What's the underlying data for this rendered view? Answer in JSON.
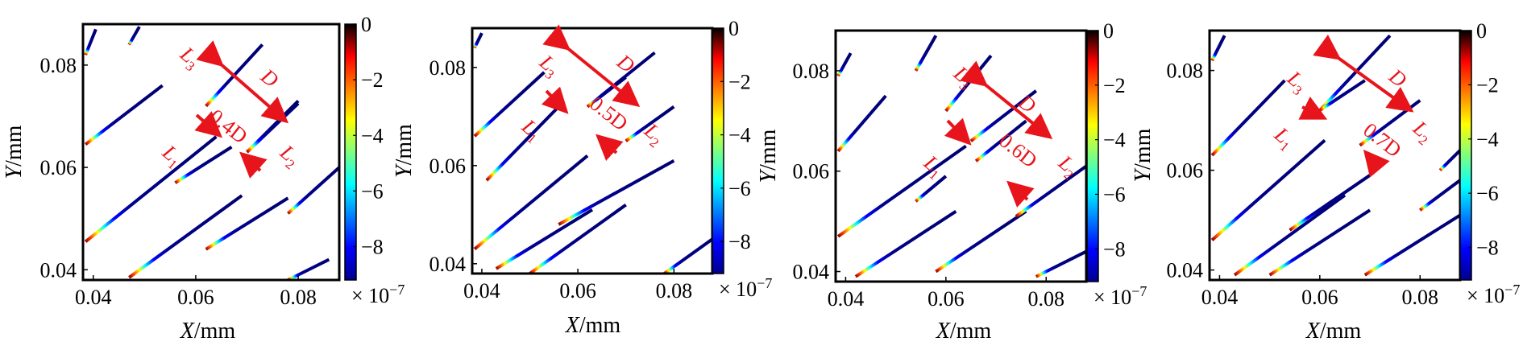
{
  "chart_data": [
    {
      "type": "scatter",
      "description_free": true,
      "xlabel_var": "X",
      "xlabel_unit": "/mm",
      "ylabel_var": "Y",
      "ylabel_unit": "/mm",
      "xticks": [
        "0.04",
        "0.06",
        "0.08"
      ],
      "yticks": [
        "0.04",
        "0.06",
        "0.08"
      ],
      "xlim": [
        0.038,
        0.088
      ],
      "ylim": [
        0.038,
        0.088
      ],
      "colorbar": {
        "ticks": [
          "0",
          "−2",
          "−4",
          "−6",
          "−8"
        ],
        "values": [
          0,
          -2,
          -4,
          -6,
          -8
        ],
        "range": [
          -9.2,
          0
        ],
        "multiplier_base": "× 10",
        "multiplier_exp": "−7"
      },
      "annotation_ratio": "0.4D",
      "labels": {
        "D": "D",
        "L1": "L",
        "L2": "L",
        "L3": "L",
        "s1": "1",
        "s2": "2",
        "s3": "3"
      },
      "segments": [
        [
          0.0385,
          0.082,
          0.0405,
          0.087
        ],
        [
          0.047,
          0.084,
          0.049,
          0.0875
        ],
        [
          0.0385,
          0.0645,
          0.0535,
          0.076
        ],
        [
          0.0385,
          0.0455,
          0.064,
          0.066
        ],
        [
          0.047,
          0.0385,
          0.069,
          0.0545
        ],
        [
          0.056,
          0.057,
          0.067,
          0.064
        ],
        [
          0.062,
          0.072,
          0.073,
          0.084
        ],
        [
          0.07,
          0.063,
          0.08,
          0.0725
        ],
        [
          0.07,
          0.063,
          0.08,
          0.073
        ],
        [
          0.062,
          0.044,
          0.078,
          0.054
        ],
        [
          0.078,
          0.051,
          0.088,
          0.06
        ],
        [
          0.078,
          0.038,
          0.086,
          0.042
        ]
      ]
    },
    {
      "type": "scatter",
      "xlabel_var": "X",
      "xlabel_unit": "/mm",
      "ylabel_var": "Y",
      "ylabel_unit": "/mm",
      "xticks": [
        "0.04",
        "0.06",
        "0.08"
      ],
      "yticks": [
        "0.04",
        "0.06",
        "0.08"
      ],
      "xlim": [
        0.038,
        0.088
      ],
      "ylim": [
        0.038,
        0.088
      ],
      "colorbar": {
        "ticks": [
          "0",
          "−2",
          "−4",
          "−6",
          "−8"
        ],
        "values": [
          0,
          -2,
          -4,
          -6,
          -8
        ],
        "range": [
          -9.2,
          0
        ],
        "multiplier_base": "× 10",
        "multiplier_exp": "−7"
      },
      "annotation_ratio": "0.5D",
      "labels": {
        "D": "D",
        "L1": "L",
        "L2": "L",
        "L3": "L",
        "s1": "1",
        "s2": "2",
        "s3": "3"
      },
      "segments": [
        [
          0.0385,
          0.084,
          0.04,
          0.087
        ],
        [
          0.0385,
          0.066,
          0.053,
          0.079
        ],
        [
          0.041,
          0.057,
          0.056,
          0.072
        ],
        [
          0.0385,
          0.043,
          0.062,
          0.062
        ],
        [
          0.043,
          0.039,
          0.063,
          0.051
        ],
        [
          0.056,
          0.048,
          0.08,
          0.061
        ],
        [
          0.05,
          0.038,
          0.07,
          0.052
        ],
        [
          0.062,
          0.072,
          0.076,
          0.083
        ],
        [
          0.062,
          0.072,
          0.07,
          0.078
        ],
        [
          0.07,
          0.065,
          0.08,
          0.072
        ],
        [
          0.078,
          0.038,
          0.088,
          0.045
        ]
      ]
    },
    {
      "type": "scatter",
      "xlabel_var": "X",
      "xlabel_unit": "/mm",
      "ylabel_var": "Y",
      "ylabel_unit": "/mm",
      "xticks": [
        "0.04",
        "0.06",
        "0.08"
      ],
      "yticks": [
        "0.04",
        "0.06",
        "0.08"
      ],
      "xlim": [
        0.038,
        0.088
      ],
      "ylim": [
        0.038,
        0.088
      ],
      "colorbar": {
        "ticks": [
          "0",
          "−2",
          "−4",
          "−6",
          "−8"
        ],
        "values": [
          0,
          -2,
          -4,
          -6,
          -8
        ],
        "range": [
          -9.2,
          0
        ],
        "multiplier_base": "× 10",
        "multiplier_exp": "−7"
      },
      "annotation_ratio": "0.6D",
      "labels": {
        "D": "D",
        "L1": "L",
        "L2": "L",
        "L3": "L",
        "s1": "1",
        "s2": "2",
        "s3": "3"
      },
      "segments": [
        [
          0.0385,
          0.079,
          0.041,
          0.0835
        ],
        [
          0.0385,
          0.064,
          0.048,
          0.075
        ],
        [
          0.0385,
          0.047,
          0.064,
          0.065
        ],
        [
          0.042,
          0.039,
          0.062,
          0.052
        ],
        [
          0.054,
          0.054,
          0.06,
          0.059
        ],
        [
          0.054,
          0.08,
          0.058,
          0.087
        ],
        [
          0.06,
          0.072,
          0.069,
          0.083
        ],
        [
          0.065,
          0.066,
          0.078,
          0.076
        ],
        [
          0.066,
          0.062,
          0.076,
          0.07
        ],
        [
          0.058,
          0.04,
          0.076,
          0.052
        ],
        [
          0.074,
          0.051,
          0.088,
          0.061
        ],
        [
          0.078,
          0.039,
          0.088,
          0.044
        ]
      ]
    },
    {
      "type": "scatter",
      "xlabel_var": "X",
      "xlabel_unit": "/mm",
      "ylabel_var": "Y",
      "ylabel_unit": "/mm",
      "xticks": [
        "0.04",
        "0.06",
        "0.08"
      ],
      "yticks": [
        "0.04",
        "0.06",
        "0.08"
      ],
      "xlim": [
        0.038,
        0.088
      ],
      "ylim": [
        0.038,
        0.088
      ],
      "colorbar": {
        "ticks": [
          "0",
          "−2",
          "−4",
          "−6",
          "−8"
        ],
        "values": [
          0,
          -2,
          -4,
          -6,
          -8
        ],
        "range": [
          -9.2,
          0
        ],
        "multiplier_base": "× 10",
        "multiplier_exp": "−7"
      },
      "annotation_ratio": "0.7D",
      "labels": {
        "D": "D",
        "L1": "L",
        "L2": "L",
        "L3": "L",
        "s1": "1",
        "s2": "2",
        "s3": "3"
      },
      "segments": [
        [
          0.0385,
          0.082,
          0.041,
          0.087
        ],
        [
          0.0385,
          0.063,
          0.053,
          0.078
        ],
        [
          0.0385,
          0.046,
          0.061,
          0.066
        ],
        [
          0.043,
          0.039,
          0.065,
          0.055
        ],
        [
          0.054,
          0.048,
          0.07,
          0.059
        ],
        [
          0.05,
          0.039,
          0.07,
          0.052
        ],
        [
          0.06,
          0.072,
          0.074,
          0.087
        ],
        [
          0.06,
          0.072,
          0.069,
          0.078
        ],
        [
          0.068,
          0.065,
          0.08,
          0.074
        ],
        [
          0.069,
          0.039,
          0.088,
          0.051
        ],
        [
          0.08,
          0.052,
          0.088,
          0.058
        ],
        [
          0.084,
          0.06,
          0.088,
          0.064
        ]
      ]
    }
  ]
}
